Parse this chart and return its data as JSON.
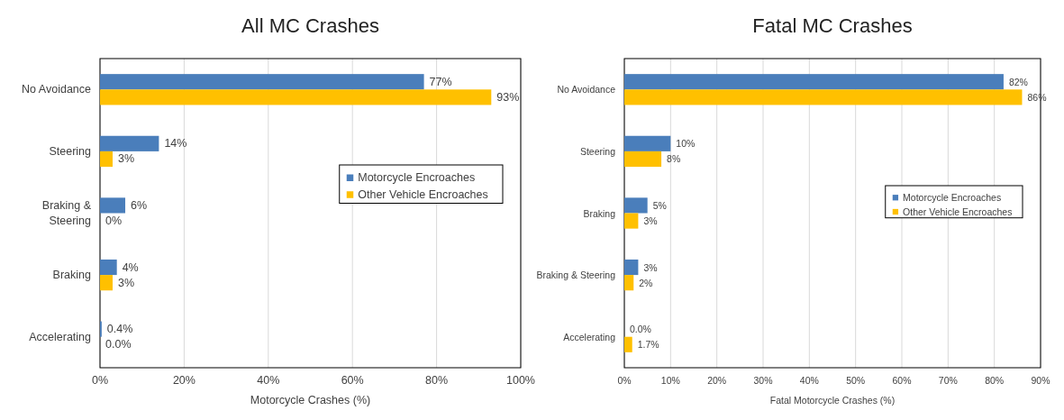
{
  "chart_data": [
    {
      "type": "bar",
      "orientation": "horizontal",
      "title": "All MC Crashes",
      "xlabel": "Motorcycle Crashes (%)",
      "categories": [
        "No Avoidance",
        "Steering",
        "Braking & Steering",
        "Braking",
        "Accelerating"
      ],
      "series": [
        {
          "name": "Motorcycle Encroaches",
          "color": "#4a7ebb",
          "values": [
            77,
            14,
            6,
            4,
            0.4
          ],
          "value_labels": [
            "77%",
            "14%",
            "6%",
            "4%",
            "0.4%"
          ]
        },
        {
          "name": "Other Vehicle Encroaches",
          "color": "#ffc000",
          "values": [
            93,
            3,
            0,
            3,
            0
          ],
          "value_labels": [
            "93%",
            "3%",
            "0%",
            "3%",
            "0.0%"
          ]
        }
      ],
      "xlim": [
        0,
        100
      ],
      "xticks": [
        {
          "value": 0,
          "label": "0%"
        },
        {
          "value": 20,
          "label": "20%"
        },
        {
          "value": 40,
          "label": "40%"
        },
        {
          "value": 60,
          "label": "60%"
        },
        {
          "value": 80,
          "label": "80%"
        },
        {
          "value": 100,
          "label": "100%"
        }
      ],
      "grid": "x",
      "legend": "right"
    },
    {
      "type": "bar",
      "orientation": "horizontal",
      "title": "Fatal MC Crashes",
      "xlabel": "Fatal Motorcycle Crashes (%)",
      "categories": [
        "No Avoidance",
        "Steering",
        "Braking",
        "Braking & Steering",
        "Accelerating"
      ],
      "series": [
        {
          "name": "Motorcycle Encroaches",
          "color": "#4a7ebb",
          "values": [
            82,
            10,
            5,
            3,
            0
          ],
          "value_labels": [
            "82%",
            "10%",
            "5%",
            "3%",
            "0.0%"
          ]
        },
        {
          "name": "Other Vehicle Encroaches",
          "color": "#ffc000",
          "values": [
            86,
            8,
            3,
            2,
            1.7
          ],
          "value_labels": [
            "86%",
            "8%",
            "3%",
            "2%",
            "1.7%"
          ]
        }
      ],
      "xlim": [
        0,
        90
      ],
      "xticks": [
        {
          "value": 0,
          "label": "0%"
        },
        {
          "value": 10,
          "label": "10%"
        },
        {
          "value": 20,
          "label": "20%"
        },
        {
          "value": 30,
          "label": "30%"
        },
        {
          "value": 40,
          "label": "40%"
        },
        {
          "value": 50,
          "label": "50%"
        },
        {
          "value": 60,
          "label": "60%"
        },
        {
          "value": 70,
          "label": "70%"
        },
        {
          "value": 80,
          "label": "80%"
        },
        {
          "value": 90,
          "label": "90%"
        }
      ],
      "grid": "x",
      "legend": "right"
    }
  ]
}
